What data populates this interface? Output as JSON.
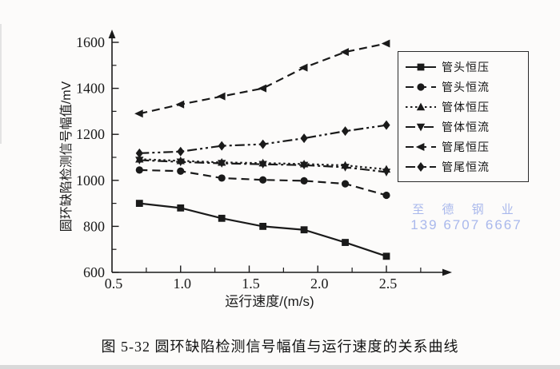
{
  "page": {
    "caption": "图 5-32   圆环缺陷检测信号幅值与运行速度的关系曲线"
  },
  "watermark": {
    "line1": "至 德 钢 业",
    "line2": "139 6707 6667",
    "color": "#a9b8ec"
  },
  "chart_data": {
    "type": "line",
    "title": "",
    "xlabel": "运行速度/(m/s)",
    "ylabel": "圆环缺陷检测信号幅值/mV",
    "ink_color": "#1a1a1a",
    "grid": false,
    "legend_position": "upper right",
    "xlim": [
      0.5,
      2.92
    ],
    "ylim": [
      600,
      1650
    ],
    "x_tick_labels": [
      "0.5",
      "1.0",
      "1.5",
      "2.0",
      "2.5"
    ],
    "x_tick_values": [
      0.5,
      1.0,
      1.5,
      2.0,
      2.5
    ],
    "x_minor_ticks": [
      0.75,
      1.25,
      1.75,
      2.25,
      2.75
    ],
    "y_major_ticks": [
      600,
      800,
      1000,
      1200,
      1400,
      1600
    ],
    "y_minor_ticks": [
      700,
      900,
      1100,
      1300,
      1500
    ],
    "x": [
      0.7,
      1.0,
      1.3,
      1.6,
      1.9,
      2.2,
      2.5
    ],
    "series": [
      {
        "name": "管头恒压",
        "marker": "square",
        "line": "solid",
        "values": [
          900,
          880,
          835,
          800,
          785,
          730,
          670
        ]
      },
      {
        "name": "管头恒流",
        "marker": "circle",
        "line": "dashed",
        "values": [
          1045,
          1040,
          1010,
          1002,
          998,
          985,
          935
        ]
      },
      {
        "name": "管体恒压",
        "marker": "triangle-up",
        "line": "dotted",
        "values": [
          1092,
          1085,
          1078,
          1075,
          1071,
          1065,
          1048
        ]
      },
      {
        "name": "管体恒流",
        "marker": "triangle-down",
        "line": "dashdot",
        "values": [
          1088,
          1080,
          1074,
          1070,
          1066,
          1057,
          1036
        ]
      },
      {
        "name": "管尾恒压",
        "marker": "triangle-left",
        "line": "dashed",
        "values": [
          1290,
          1330,
          1365,
          1400,
          1490,
          1558,
          1595
        ]
      },
      {
        "name": "管尾恒流",
        "marker": "diamond",
        "line": "dashdotdot",
        "values": [
          1118,
          1125,
          1150,
          1157,
          1183,
          1214,
          1240
        ]
      }
    ]
  }
}
